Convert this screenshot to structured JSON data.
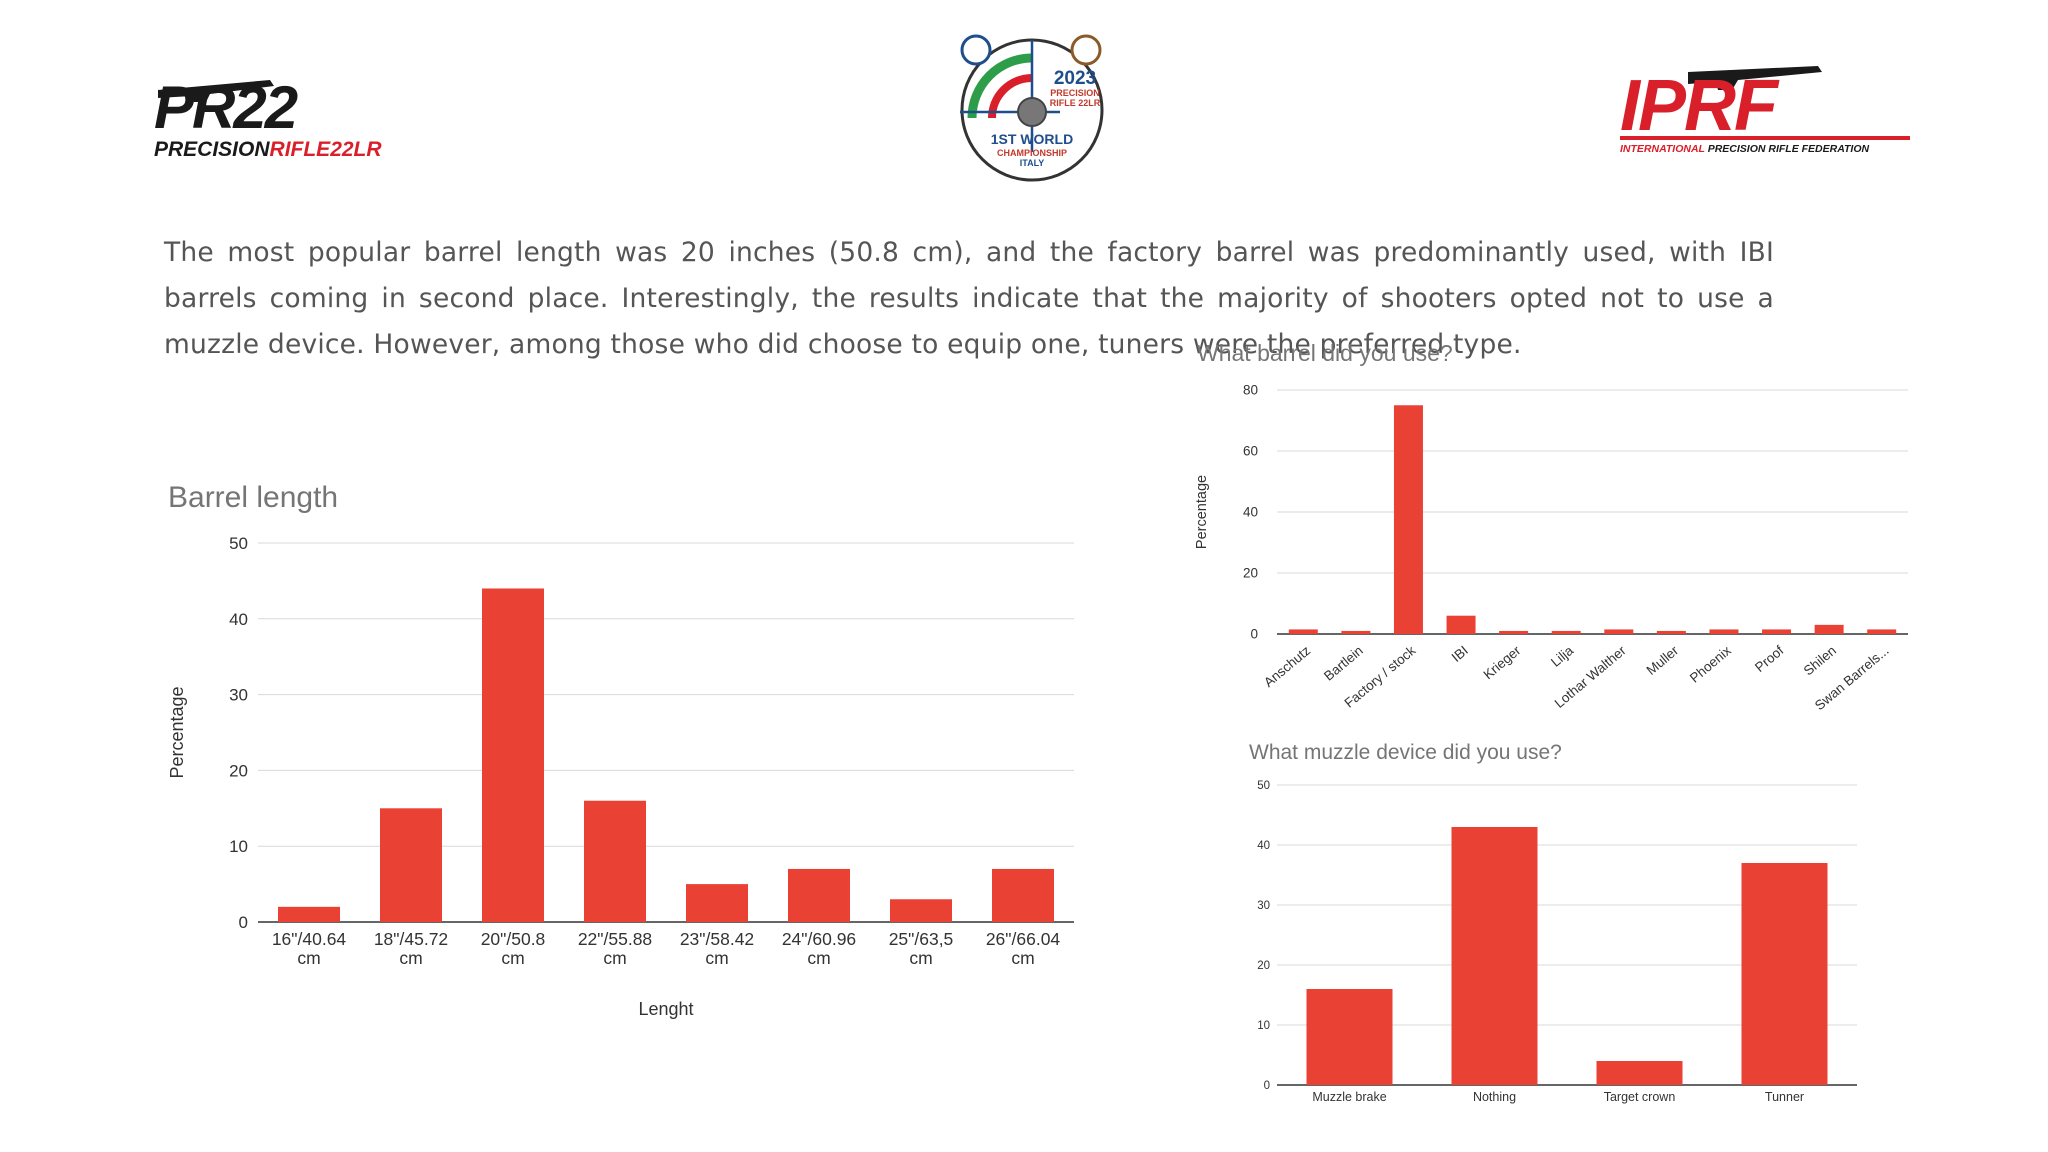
{
  "header": {
    "left_logo": {
      "text_main": "PR22",
      "text_sub_a": "PRECISION",
      "text_sub_b": "RIFLE22LR"
    },
    "center_logo": {
      "year": "2023",
      "line1": "PRECISION",
      "line2": "RIFLE 22LR",
      "champ_a": "1ST WORLD",
      "champ_b": "CHAMPIONSHIP",
      "country": "ITALY"
    },
    "right_logo": {
      "text_main": "IPRF",
      "tag_a": "INTERNATIONAL",
      "tag_b": "PRECISION RIFLE FEDERATION"
    }
  },
  "intro_text": "The most popular barrel length was 20 inches (50.8 cm), and the factory barrel was predominantly used, with IBI barrels coming in second place. Interestingly, the results indicate that the majority of shooters opted not to use a muzzle device. However, among those who did choose to equip one, tuners were the preferred type.",
  "colors": {
    "bar": "#e94235",
    "grid": "#d9d9d9",
    "axis": "#333333",
    "title": "#757575",
    "brand_red": "#d81f2a",
    "brand_dark": "#1a1a1a"
  },
  "chart_data": [
    {
      "id": "barrel-length",
      "type": "bar",
      "title": "Barrel length",
      "xlabel": "Lenght",
      "ylabel": "Percentage",
      "ylim": [
        0,
        50
      ],
      "yticks": [
        0,
        10,
        20,
        30,
        40,
        50
      ],
      "grid": true,
      "categories": [
        [
          "16\"/40.64",
          "cm"
        ],
        [
          "18\"/45.72",
          "cm"
        ],
        [
          "20\"/50.8",
          "cm"
        ],
        [
          "22\"/55.88",
          "cm"
        ],
        [
          "23\"/58.42",
          "cm"
        ],
        [
          "24\"/60.96",
          "cm"
        ],
        [
          "25\"/63,5",
          "cm"
        ],
        [
          "26\"/66.04",
          "cm"
        ]
      ],
      "values": [
        2,
        15,
        44,
        16,
        5,
        7,
        3,
        7
      ]
    },
    {
      "id": "barrel-used",
      "type": "bar",
      "title": "What barrel did you use?",
      "xlabel": "",
      "ylabel": "Percentage",
      "ylim": [
        0,
        80
      ],
      "yticks": [
        0,
        20,
        40,
        60,
        80
      ],
      "grid": true,
      "categories": [
        "Anschutz",
        "Bartlein",
        "Factory / stock",
        "IBI",
        "Krieger",
        "Lilja",
        "Lothar Walther",
        "Muller",
        "Phoenix",
        "Proof",
        "Shilen",
        "Swan Barrels..."
      ],
      "values": [
        1.5,
        1,
        75,
        6,
        1,
        1,
        1.5,
        1,
        1.5,
        1.5,
        3,
        1.5
      ]
    },
    {
      "id": "muzzle-device",
      "type": "bar",
      "title": "What muzzle device did you use?",
      "xlabel": "",
      "ylabel": "",
      "ylim": [
        0,
        50
      ],
      "yticks": [
        0,
        10,
        20,
        30,
        40,
        50
      ],
      "grid": true,
      "categories": [
        "Muzzle brake",
        "Nothing",
        "Target crown",
        "Tunner"
      ],
      "values": [
        16,
        43,
        4,
        37
      ]
    }
  ]
}
